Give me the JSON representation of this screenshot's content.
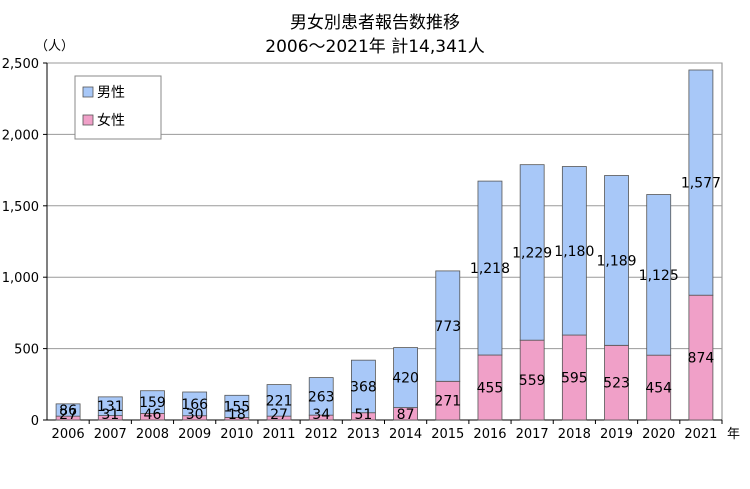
{
  "chart_data": {
    "type": "bar",
    "stacked": true,
    "title": "男女別患者報告数推移",
    "subtitle": "2006～2021年 計14,341人",
    "ylabel": "（人）",
    "xlabel_unit": "年",
    "ylim": [
      0,
      2500
    ],
    "yticks": [
      0,
      500,
      1000,
      1500,
      2000,
      2500
    ],
    "ytick_labels": [
      "0",
      "500",
      "1,000",
      "1,500",
      "2,000",
      "2,500"
    ],
    "grid": true,
    "legend_position": "top-left",
    "categories": [
      "2006",
      "2007",
      "2008",
      "2009",
      "2010",
      "2011",
      "2012",
      "2013",
      "2014",
      "2015",
      "2016",
      "2017",
      "2018",
      "2019",
      "2020",
      "2021"
    ],
    "series": [
      {
        "name": "女性",
        "color": "#f0a0c8",
        "values": [
          27,
          31,
          46,
          30,
          18,
          27,
          34,
          51,
          87,
          271,
          455,
          559,
          595,
          523,
          454,
          874
        ],
        "labels": [
          "27",
          "31",
          "46",
          "30",
          "18",
          "27",
          "34",
          "51",
          "87",
          "271",
          "455",
          "559",
          "595",
          "523",
          "454",
          "874"
        ]
      },
      {
        "name": "男性",
        "color": "#a8c8f8",
        "values": [
          86,
          131,
          159,
          166,
          155,
          221,
          263,
          368,
          420,
          773,
          1218,
          1229,
          1180,
          1189,
          1125,
          1577
        ],
        "labels": [
          "86",
          "131",
          "159",
          "166",
          "155",
          "221",
          "263",
          "368",
          "420",
          "773",
          "1,218",
          "1,229",
          "1,180",
          "1,189",
          "1,125",
          "1,577"
        ]
      }
    ]
  }
}
